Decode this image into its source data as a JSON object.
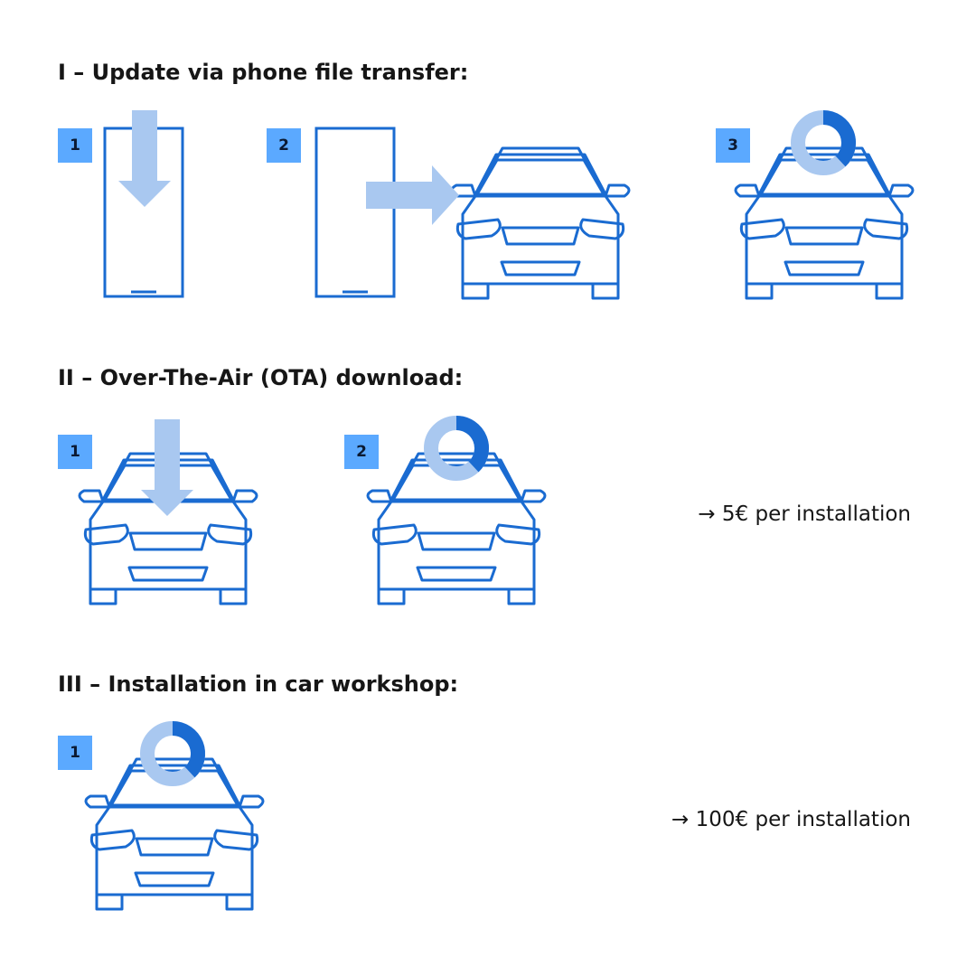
{
  "sections": [
    {
      "heading": "I – Update via phone file transfer:",
      "steps": [
        "1",
        "2",
        "3"
      ]
    },
    {
      "heading": "II – Over-The-Air (OTA) download:",
      "steps": [
        "1",
        "2"
      ],
      "price": "→ 5€ per installation"
    },
    {
      "heading": "III – Installation in car workshop:",
      "steps": [
        "1"
      ],
      "price": "→ 100€ per installation"
    }
  ],
  "colors": {
    "outline": "#1a6bd1",
    "arrow": "#a9c8f0",
    "badge": "#5ba9ff",
    "progress_done": "#1a6bd1",
    "progress_remaining": "#a9c8f0"
  },
  "progress_fraction": 0.38,
  "icons": [
    "phone-icon",
    "car-icon",
    "download-arrow-icon",
    "transfer-arrow-icon",
    "progress-ring-icon"
  ]
}
